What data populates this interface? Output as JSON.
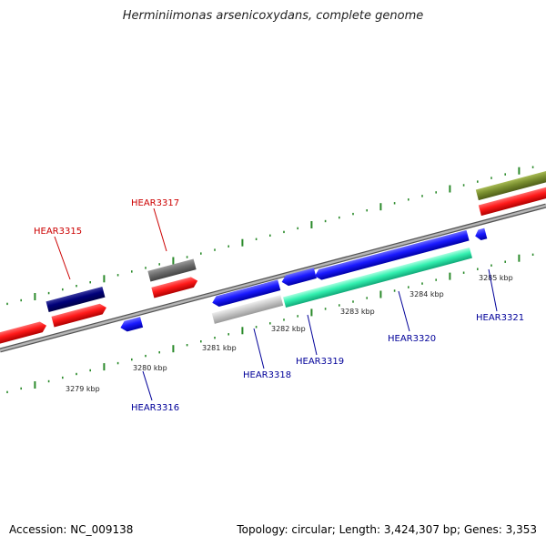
{
  "title": "Herminiimonas arsenicoxydans, complete genome",
  "footer": {
    "accession": "Accession: NC_009138",
    "summary": "Topology: circular; Length: 3,424,307 bp; Genes: 3,353"
  },
  "colors": {
    "backbone": "#8a8a8a",
    "tick": "#2a8a2a",
    "label_top": "#cc0000",
    "label_bottom": "#000099"
  },
  "scale_labels": [
    "3279 kbp",
    "3280 kbp",
    "3281 kbp",
    "3282 kbp",
    "3283 kbp",
    "3284 kbp",
    "3285 kbp"
  ],
  "gene_labels": {
    "HEAR3315": "HEAR3315",
    "HEAR3316": "HEAR3316",
    "HEAR3317": "HEAR3317",
    "HEAR3318": "HEAR3318",
    "HEAR3319": "HEAR3319",
    "HEAR3320": "HEAR3320",
    "HEAR3321": "HEAR3321"
  }
}
